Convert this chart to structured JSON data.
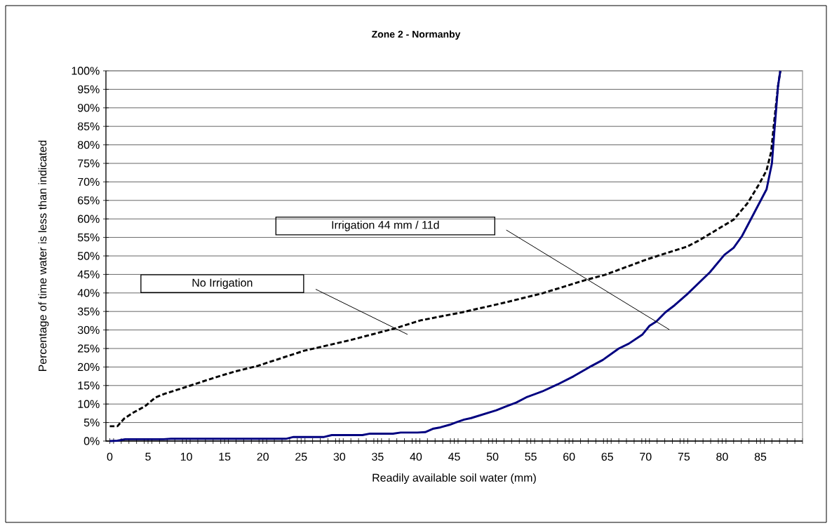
{
  "chart_data": {
    "type": "line",
    "title": "Zone 2 - Normanby",
    "xlabel": "Readily available soil water (mm)",
    "ylabel": "Percentage of time water is less than indicated",
    "xlim": [
      -0.5,
      90.5
    ],
    "ylim": [
      0,
      100
    ],
    "xticks": [
      0,
      5,
      10,
      15,
      20,
      25,
      30,
      35,
      40,
      45,
      50,
      55,
      60,
      65,
      70,
      75,
      80,
      85,
      {
        "value": 0.5,
        "label": null
      },
      {
        "value": 1.5,
        "label": null
      },
      {
        "value": 2.5,
        "label": null
      },
      {
        "value": 3.5,
        "label": null
      },
      {
        "value": 4.5,
        "label": null
      },
      {
        "value": 5.5,
        "label": null
      },
      {
        "value": 6.5,
        "label": null
      },
      {
        "value": 7.5,
        "label": null
      },
      {
        "value": 8.5,
        "label": null
      },
      {
        "value": 9.5,
        "label": null
      },
      {
        "value": 10.5,
        "label": null
      },
      {
        "value": 11.5,
        "label": null
      },
      {
        "value": 12.5,
        "label": null
      },
      {
        "value": 13.5,
        "label": null
      },
      {
        "value": 14.5,
        "label": null
      },
      {
        "value": 15.5,
        "label": null
      },
      {
        "value": 16.5,
        "label": null
      },
      {
        "value": 17.5,
        "label": null
      },
      {
        "value": 18.5,
        "label": null
      },
      {
        "value": 19.5,
        "label": null
      },
      {
        "value": 20.5,
        "label": null
      },
      {
        "value": 21.5,
        "label": null
      },
      {
        "value": 22.5,
        "label": null
      },
      {
        "value": 23.5,
        "label": null
      },
      {
        "value": 24.5,
        "label": null
      },
      {
        "value": 25.5,
        "label": null
      },
      {
        "value": 26.5,
        "label": null
      },
      {
        "value": 27.5,
        "label": null
      },
      {
        "value": 28.5,
        "label": null
      },
      {
        "value": 29.5,
        "label": null
      },
      {
        "value": 30.5,
        "label": null
      },
      {
        "value": 31.5,
        "label": null
      },
      {
        "value": 32.5,
        "label": null
      },
      {
        "value": 33.5,
        "label": null
      },
      {
        "value": 34.5,
        "label": null
      },
      {
        "value": 35.5,
        "label": null
      },
      {
        "value": 36.5,
        "label": null
      },
      {
        "value": 37.5,
        "label": null
      },
      {
        "value": 38.5,
        "label": null
      },
      {
        "value": 39.5,
        "label": null
      },
      {
        "value": 40.5,
        "label": null
      },
      {
        "value": 41.5,
        "label": null
      },
      {
        "value": 42.5,
        "label": null
      },
      {
        "value": 43.5,
        "label": null
      },
      {
        "value": 44.5,
        "label": null
      },
      {
        "value": 45.5,
        "label": null
      },
      {
        "value": 46.5,
        "label": null
      },
      {
        "value": 47.5,
        "label": null
      },
      {
        "value": 48.5,
        "label": null
      },
      {
        "value": 49.5,
        "label": null
      },
      {
        "value": 50.5,
        "label": null
      },
      {
        "value": 51.5,
        "label": null
      },
      {
        "value": 52.5,
        "label": null
      },
      {
        "value": 53.5,
        "label": null
      },
      {
        "value": 54.5,
        "label": null
      },
      {
        "value": 55.5,
        "label": null
      },
      {
        "value": 56.5,
        "label": null
      },
      {
        "value": 57.5,
        "label": null
      },
      {
        "value": 58.5,
        "label": null
      },
      {
        "value": 59.5,
        "label": null
      },
      {
        "value": 60.5,
        "label": null
      },
      {
        "value": 61.5,
        "label": null
      },
      {
        "value": 62.5,
        "label": null
      },
      {
        "value": 63.5,
        "label": null
      },
      {
        "value": 64.5,
        "label": null
      },
      {
        "value": 65.5,
        "label": null
      },
      {
        "value": 66.5,
        "label": null
      },
      {
        "value": 67.5,
        "label": null
      },
      {
        "value": 68.5,
        "label": null
      },
      {
        "value": 69.5,
        "label": null
      },
      {
        "value": 70.5,
        "label": null
      },
      {
        "value": 71.5,
        "label": null
      },
      {
        "value": 72.5,
        "label": null
      },
      {
        "value": 73.5,
        "label": null
      },
      {
        "value": 74.5,
        "label": null
      },
      {
        "value": 75.5,
        "label": null
      },
      {
        "value": 76.5,
        "label": null
      },
      {
        "value": 77.5,
        "label": null
      },
      {
        "value": 78.5,
        "label": null
      },
      {
        "value": 79.5,
        "label": null
      },
      {
        "value": 80.5,
        "label": null
      },
      {
        "value": 81.5,
        "label": null
      },
      {
        "value": 82.5,
        "label": null
      },
      {
        "value": 83.5,
        "label": null
      },
      {
        "value": 84.5,
        "label": null
      },
      {
        "value": 85.5,
        "label": null
      },
      {
        "value": 86.5,
        "label": null
      },
      {
        "value": 87.5,
        "label": null
      },
      {
        "value": 88.5,
        "label": null
      },
      {
        "value": 89.5,
        "label": null
      },
      {
        "value": 90.5,
        "label": null
      }
    ],
    "yticks": [
      {
        "value": 0,
        "label": "0%"
      },
      {
        "value": 5,
        "label": "5%"
      },
      {
        "value": 10,
        "label": "10%"
      },
      {
        "value": 15,
        "label": "15%"
      },
      {
        "value": 20,
        "label": "20%"
      },
      {
        "value": 25,
        "label": "25%"
      },
      {
        "value": 30,
        "label": "30%"
      },
      {
        "value": 35,
        "label": "35%"
      },
      {
        "value": 40,
        "label": "40%"
      },
      {
        "value": 45,
        "label": "45%"
      },
      {
        "value": 50,
        "label": "50%"
      },
      {
        "value": 55,
        "label": "55%"
      },
      {
        "value": 60,
        "label": "60%"
      },
      {
        "value": 65,
        "label": "65%"
      },
      {
        "value": 70,
        "label": "70%"
      },
      {
        "value": 75,
        "label": "75%"
      },
      {
        "value": 80,
        "label": "80%"
      },
      {
        "value": 85,
        "label": "85%"
      },
      {
        "value": 90,
        "label": "90%"
      },
      {
        "value": 95,
        "label": "95%"
      },
      {
        "value": 100,
        "label": "100%"
      }
    ],
    "grid": "y",
    "series": [
      {
        "color": "#000000",
        "line_style": "dashed",
        "x": [
          0,
          1,
          1.9,
          3.1,
          4.6,
          6.0,
          7.1,
          8.6,
          10.7,
          13.2,
          16.2,
          19.3,
          25.4,
          31.5,
          37.2,
          40.6,
          46.1,
          51.6,
          56.5,
          62.0,
          64.7,
          70.2,
          75.4,
          76.9,
          81.5,
          83.3,
          84.8,
          85.8,
          86.4,
          86.8,
          87.3,
          87.6
        ],
        "values": [
          4.0,
          4.0,
          6.1,
          7.7,
          9.4,
          11.8,
          12.7,
          13.7,
          15.1,
          16.8,
          18.7,
          20.3,
          24.4,
          27.3,
          30.4,
          32.6,
          34.8,
          37.4,
          39.9,
          43.4,
          44.9,
          49.1,
          52.5,
          54.1,
          59.8,
          64.2,
          69.3,
          73.1,
          78.1,
          86.3,
          95.9,
          100
        ]
      },
      {
        "color": "#000080",
        "line_style": "solid",
        "x": [
          0,
          1,
          2,
          7,
          8,
          23,
          24,
          28,
          29,
          33,
          34,
          37,
          38,
          40.2,
          41.2,
          42.2,
          43.2,
          44.4,
          45.3,
          46.3,
          47.2,
          48.3,
          50.5,
          51.7,
          53.1,
          54.4,
          56.5,
          58.5,
          60.6,
          62.6,
          64.4,
          66.5,
          67.8,
          69.6,
          70.5,
          71.4,
          72.6,
          73.8,
          75.4,
          78.4,
          80.3,
          81.5,
          82.6,
          84.2,
          85.8,
          86.5,
          86.8,
          87.3,
          87.6
        ],
        "values": [
          0,
          0.1,
          0.5,
          0.5,
          0.6,
          0.6,
          1.1,
          1.1,
          1.6,
          1.6,
          2.0,
          2.0,
          2.3,
          2.3,
          2.4,
          3.3,
          3.7,
          4.4,
          5.1,
          5.8,
          6.2,
          6.9,
          8.3,
          9.3,
          10.4,
          11.8,
          13.4,
          15.3,
          17.5,
          19.9,
          21.9,
          25.0,
          26.3,
          28.8,
          31.1,
          32.3,
          34.8,
          36.7,
          39.6,
          45.6,
          50.3,
          52.2,
          55.4,
          61.7,
          68.0,
          75.0,
          83.2,
          95.9,
          100
        ]
      }
    ],
    "annotations": [
      "No Irrigation",
      "Irrigation 44 mm / 11d"
    ]
  }
}
